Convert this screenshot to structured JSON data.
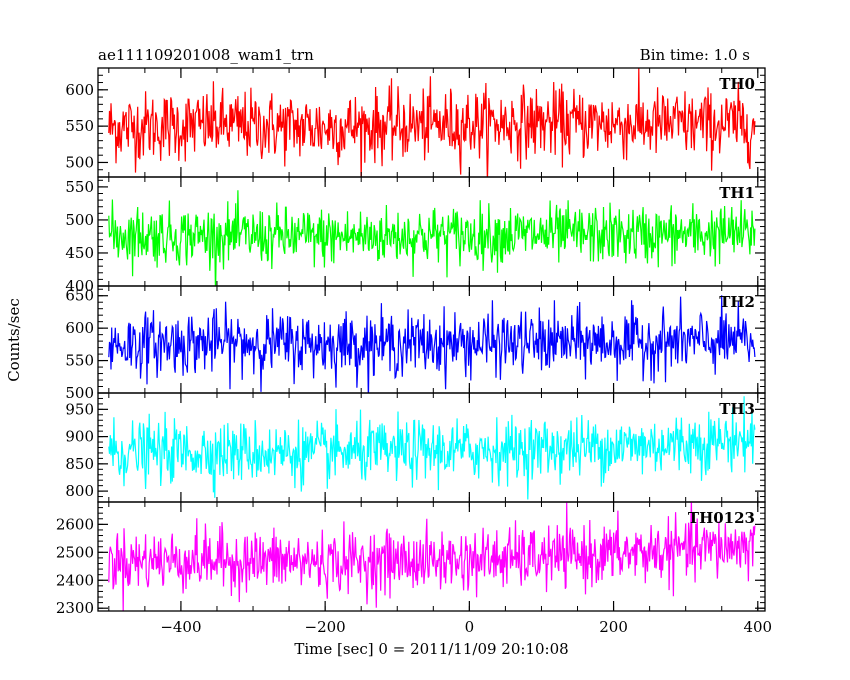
{
  "chart_data": {
    "type": "line",
    "title": "ae111109201008_wam1_trn",
    "subtitle": "Bin time: 1.0 s",
    "xlabel": "Time [sec] 0 = 2011/11/09 20:10:08",
    "ylabel": "Counts/sec",
    "xlim": [
      -515,
      410
    ],
    "x_ticks": [
      -400,
      -200,
      0,
      200,
      400
    ],
    "x_tick_labels": [
      "−400",
      "−200",
      "0",
      "200",
      "400"
    ],
    "x_range_data": [
      -500,
      396
    ],
    "grid": false,
    "panels": [
      {
        "name": "TH0",
        "color": "#ff0000",
        "ylim": [
          480,
          630
        ],
        "y_ticks": [
          500,
          550,
          600
        ],
        "y_tick_labels": [
          "500",
          "550",
          "600"
        ],
        "mean": 548,
        "std": 24,
        "trend": [
          548,
          552,
          548,
          552,
          555,
          553,
          552
        ]
      },
      {
        "name": "TH1",
        "color": "#00ff00",
        "ylim": [
          400,
          565
        ],
        "y_ticks": [
          400,
          450,
          500,
          550
        ],
        "y_tick_labels": [
          "400",
          "450",
          "500",
          "550"
        ],
        "mean": 477,
        "std": 22,
        "trend": [
          478,
          476,
          474,
          477,
          478,
          477,
          480
        ]
      },
      {
        "name": "TH2",
        "color": "#0000ff",
        "ylim": [
          500,
          665
        ],
        "y_ticks": [
          500,
          550,
          600,
          650
        ],
        "y_tick_labels": [
          "500",
          "550",
          "600",
          "650"
        ],
        "mean": 577,
        "std": 24,
        "trend": [
          575,
          578,
          576,
          576,
          578,
          578,
          580
        ]
      },
      {
        "name": "TH3",
        "color": "#00ffff",
        "ylim": [
          780,
          980
        ],
        "y_ticks": [
          800,
          850,
          900,
          950
        ],
        "y_tick_labels": [
          "800",
          "850",
          "900",
          "950"
        ],
        "mean": 878,
        "std": 28,
        "trend": [
          872,
          872,
          870,
          874,
          878,
          884,
          896
        ]
      },
      {
        "name": "TH0123",
        "color": "#ff00ff",
        "ylim": [
          2290,
          2680
        ],
        "y_ticks": [
          2300,
          2400,
          2500,
          2600
        ],
        "y_tick_labels": [
          "2300",
          "2400",
          "2500",
          "2600"
        ],
        "mean": 2480,
        "std": 55,
        "trend": [
          2470,
          2472,
          2465,
          2470,
          2480,
          2500,
          2525
        ]
      }
    ]
  }
}
